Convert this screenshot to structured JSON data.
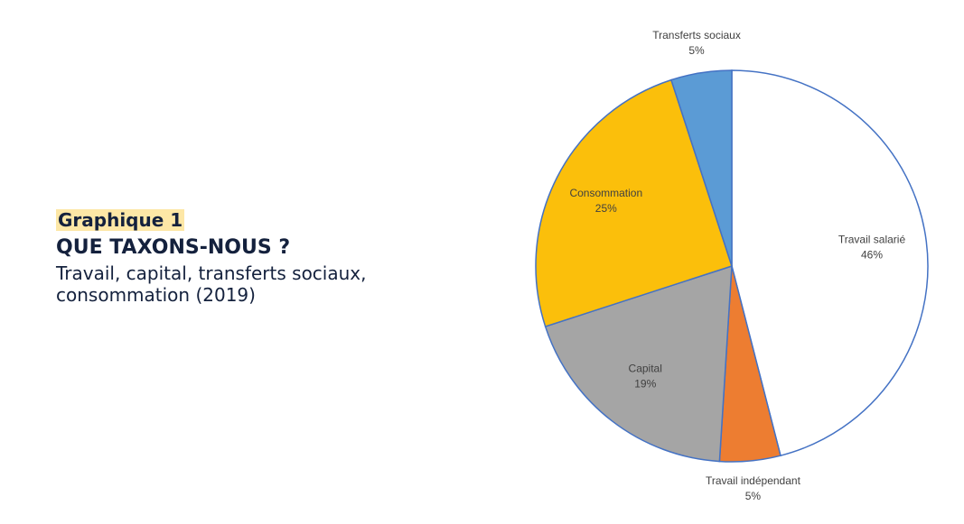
{
  "chart_data": {
    "type": "pie",
    "kicker": "Graphique 1",
    "title": "QUE TAXONS-NOUS ?",
    "subtitle": "Travail, capital, transferts sociaux, consommation (2019)",
    "categories": [
      "Travail salarié",
      "Travail indépendant",
      "Capital",
      "Consommation",
      "Transferts sociaux"
    ],
    "values": [
      46,
      5,
      19,
      25,
      5
    ],
    "value_labels": [
      "46%",
      "5%",
      "19%",
      "25%",
      "5%"
    ],
    "colors": [
      "#ffffff",
      "#ed7d31",
      "#a5a5a5",
      "#fbbf0b",
      "#5b9bd5"
    ]
  }
}
